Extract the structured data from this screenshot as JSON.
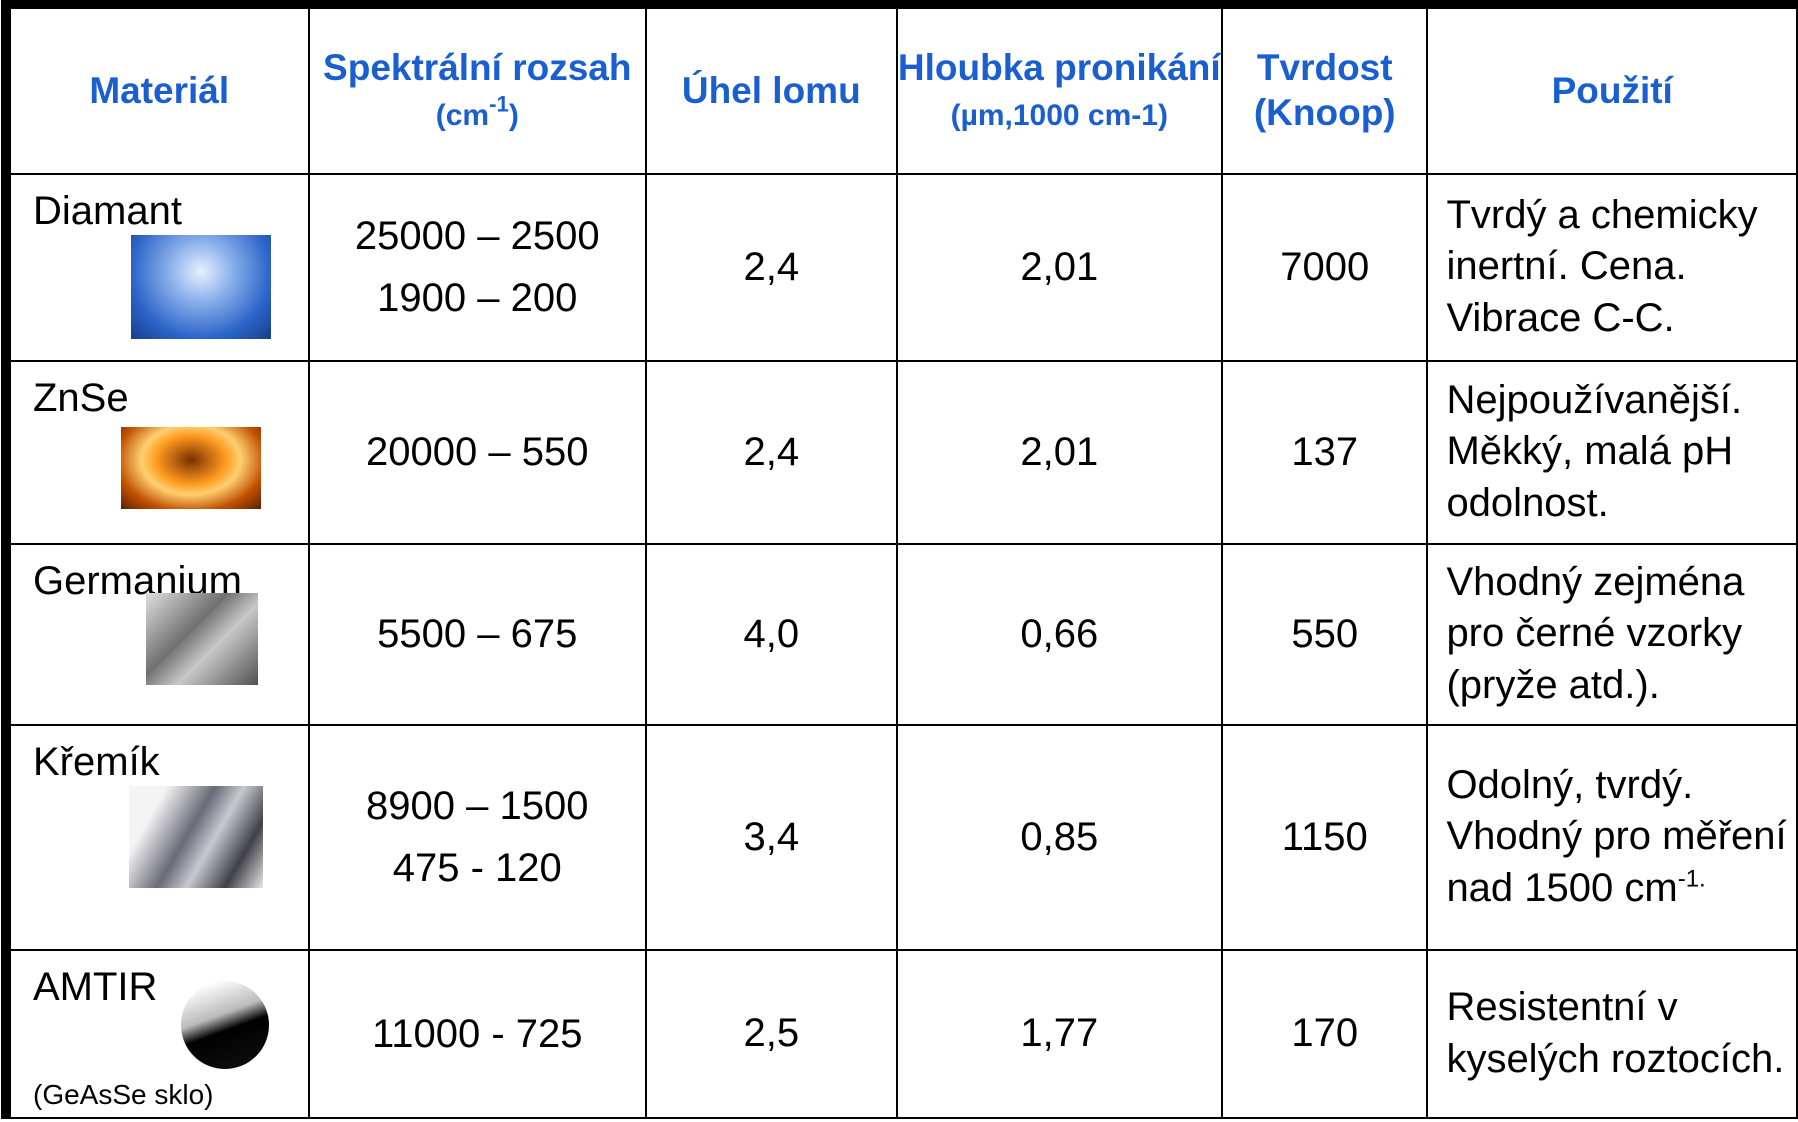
{
  "table": {
    "header": {
      "material": "Materiál",
      "range": {
        "main": "Spektrální rozsah",
        "unit": "(cm",
        "sup": "-1",
        "close": ")"
      },
      "angle": "Úhel lomu",
      "depth": {
        "main": "Hloubka pronikání",
        "sub": "(µm,1000 cm-1)"
      },
      "hardness": {
        "main": "Tvrdost",
        "sub": "(Knoop)"
      },
      "usage": "Použití"
    },
    "rows": [
      {
        "material": "Diamant",
        "range": [
          "25000 – 2500",
          "1900 – 200"
        ],
        "angle": "2,4",
        "depth": "2,01",
        "hardness": 7000,
        "usage": "Tvrdý a chemicky inertní. Cena. Vibrace C-C."
      },
      {
        "material": "ZnSe",
        "range": [
          "20000 – 550"
        ],
        "angle": "2,4",
        "depth": "2,01",
        "hardness": 137,
        "usage": "Nejpoužívanější. Měkký, malá pH odolnost."
      },
      {
        "material": "Germanium",
        "range": [
          "5500 – 675"
        ],
        "angle": "4,0",
        "depth": "0,66",
        "hardness": 550,
        "usage": "Vhodný zejména pro černé vzorky (pryže atd.)."
      },
      {
        "material": "Křemík",
        "range": [
          "8900 – 1500",
          "475 - 120"
        ],
        "angle": "3,4",
        "depth": "0,85",
        "hardness": 1150,
        "usage": "Odolný, tvrdý. Vhodný pro měření nad 1500 cm",
        "usage_sup": "-1."
      },
      {
        "material": "AMTIR",
        "note": "(GeAsSe sklo)",
        "range": [
          "11000 - 725"
        ],
        "angle": "2,5",
        "depth": "1,77",
        "hardness": 170,
        "usage": "Resistentní v kyselých roztocích."
      }
    ]
  }
}
